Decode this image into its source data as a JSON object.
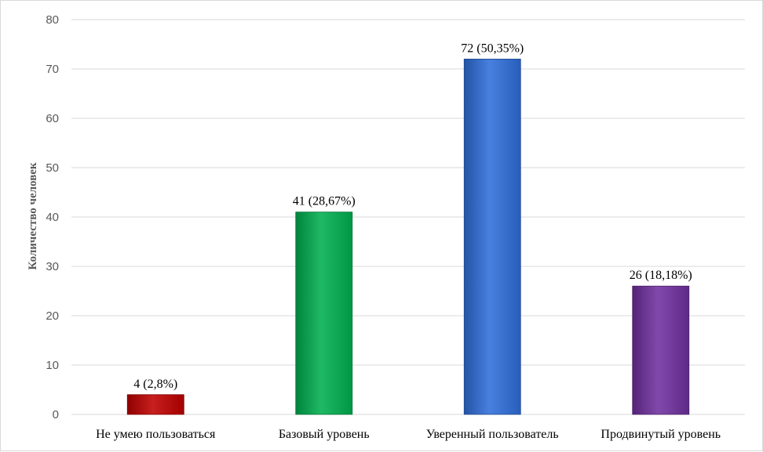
{
  "chart_data": {
    "type": "bar",
    "title": "",
    "xlabel": "",
    "ylabel": "Количество человек",
    "ylim": [
      0,
      80
    ],
    "yticks": [
      0,
      10,
      20,
      30,
      40,
      50,
      60,
      70,
      80
    ],
    "grid": true,
    "legend": "none",
    "categories": [
      "Не умею пользоваться",
      "Базовый уровень",
      "Уверенный пользователь",
      "Продвинутый уровень"
    ],
    "values": [
      4,
      41,
      72,
      26
    ],
    "data_labels": [
      "4 (2,8%)",
      "41 (28,67%)",
      "72 (50,35%)",
      "26 (18,18%)"
    ],
    "colors": [
      "#c00000",
      "#00b050",
      "#2f6fdc",
      "#7030a0"
    ]
  }
}
